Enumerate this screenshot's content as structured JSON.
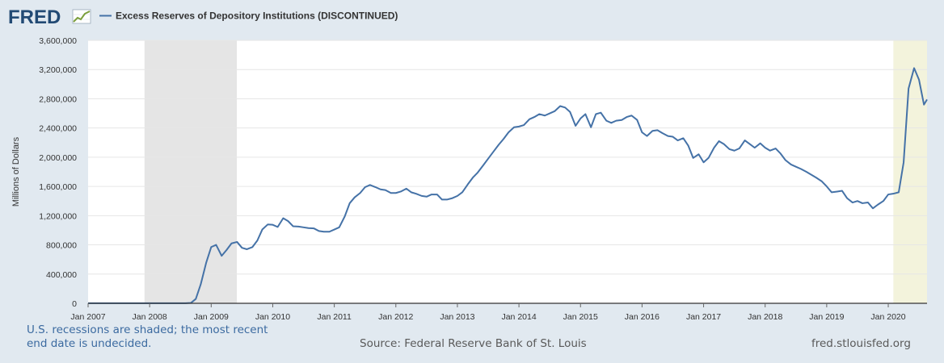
{
  "logo": {
    "text": "FRED"
  },
  "chart_data": {
    "type": "line",
    "title": "Excess Reserves of Depository Institutions (DISCONTINUED)",
    "ylabel": "Millions of Dollars",
    "xlabel": "",
    "ylim": [
      0,
      3600000
    ],
    "xlim": [
      2007.0,
      2020.63
    ],
    "yticks": [
      {
        "value": 0,
        "label": "0"
      },
      {
        "value": 400000,
        "label": "400,000"
      },
      {
        "value": 800000,
        "label": "800,000"
      },
      {
        "value": 1200000,
        "label": "1,200,000"
      },
      {
        "value": 1600000,
        "label": "1,600,000"
      },
      {
        "value": 2000000,
        "label": "2,000,000"
      },
      {
        "value": 2400000,
        "label": "2,400,000"
      },
      {
        "value": 2800000,
        "label": "2,800,000"
      },
      {
        "value": 3200000,
        "label": "3,200,000"
      },
      {
        "value": 3600000,
        "label": "3,600,000"
      }
    ],
    "xticks": [
      {
        "value": 2007,
        "label": "Jan 2007"
      },
      {
        "value": 2008,
        "label": "Jan 2008"
      },
      {
        "value": 2009,
        "label": "Jan 2009"
      },
      {
        "value": 2010,
        "label": "Jan 2010"
      },
      {
        "value": 2011,
        "label": "Jan 2011"
      },
      {
        "value": 2012,
        "label": "Jan 2012"
      },
      {
        "value": 2013,
        "label": "Jan 2013"
      },
      {
        "value": 2014,
        "label": "Jan 2014"
      },
      {
        "value": 2015,
        "label": "Jan 2015"
      },
      {
        "value": 2016,
        "label": "Jan 2016"
      },
      {
        "value": 2017,
        "label": "Jan 2017"
      },
      {
        "value": 2018,
        "label": "Jan 2018"
      },
      {
        "value": 2019,
        "label": "Jan 2019"
      },
      {
        "value": 2020,
        "label": "Jan 2020"
      }
    ],
    "recessions": [
      {
        "start": 2007.917,
        "end": 2009.417,
        "kind": "recession"
      },
      {
        "start": 2020.083,
        "end": 2020.63,
        "kind": "undecided"
      }
    ],
    "series": [
      {
        "name": "Excess Reserves of Depository Institutions (DISCONTINUED)",
        "color": "#4572a7",
        "x": [
          2007.0,
          2007.5,
          2008.0,
          2008.5,
          2008.58,
          2008.67,
          2008.75,
          2008.83,
          2008.92,
          2009.0,
          2009.08,
          2009.17,
          2009.25,
          2009.33,
          2009.42,
          2009.5,
          2009.58,
          2009.67,
          2009.75,
          2009.83,
          2009.92,
          2010.0,
          2010.08,
          2010.17,
          2010.25,
          2010.33,
          2010.42,
          2010.5,
          2010.58,
          2010.67,
          2010.75,
          2010.83,
          2010.92,
          2011.0,
          2011.08,
          2011.17,
          2011.25,
          2011.33,
          2011.42,
          2011.5,
          2011.58,
          2011.67,
          2011.75,
          2011.83,
          2011.92,
          2012.0,
          2012.08,
          2012.17,
          2012.25,
          2012.33,
          2012.42,
          2012.5,
          2012.58,
          2012.67,
          2012.75,
          2012.83,
          2012.92,
          2013.0,
          2013.08,
          2013.17,
          2013.25,
          2013.33,
          2013.42,
          2013.5,
          2013.58,
          2013.67,
          2013.75,
          2013.83,
          2013.92,
          2014.0,
          2014.08,
          2014.17,
          2014.25,
          2014.33,
          2014.42,
          2014.5,
          2014.58,
          2014.67,
          2014.75,
          2014.83,
          2014.92,
          2015.0,
          2015.08,
          2015.17,
          2015.25,
          2015.33,
          2015.42,
          2015.5,
          2015.58,
          2015.67,
          2015.75,
          2015.83,
          2015.92,
          2016.0,
          2016.08,
          2016.17,
          2016.25,
          2016.33,
          2016.42,
          2016.5,
          2016.58,
          2016.67,
          2016.75,
          2016.83,
          2016.92,
          2017.0,
          2017.08,
          2017.17,
          2017.25,
          2017.33,
          2017.42,
          2017.5,
          2017.58,
          2017.67,
          2017.75,
          2017.83,
          2017.92,
          2018.0,
          2018.08,
          2018.17,
          2018.25,
          2018.33,
          2018.42,
          2018.5,
          2018.58,
          2018.67,
          2018.75,
          2018.83,
          2018.92,
          2019.0,
          2019.08,
          2019.17,
          2019.25,
          2019.33,
          2019.42,
          2019.5,
          2019.58,
          2019.67,
          2019.75,
          2019.83,
          2019.92,
          2020.0,
          2020.08,
          2020.17,
          2020.25,
          2020.33,
          2020.42,
          2020.5,
          2020.58,
          2020.63
        ],
        "values": [
          2000,
          2000,
          2000,
          2000,
          2000,
          5000,
          60000,
          260000,
          560000,
          770000,
          800000,
          650000,
          730000,
          820000,
          840000,
          760000,
          740000,
          770000,
          860000,
          1010000,
          1080000,
          1075000,
          1045000,
          1165000,
          1125000,
          1055000,
          1050000,
          1040000,
          1030000,
          1025000,
          990000,
          980000,
          980000,
          1010000,
          1040000,
          1190000,
          1370000,
          1450000,
          1510000,
          1590000,
          1620000,
          1590000,
          1560000,
          1550000,
          1510000,
          1510000,
          1530000,
          1570000,
          1520000,
          1500000,
          1470000,
          1460000,
          1490000,
          1490000,
          1420000,
          1420000,
          1440000,
          1470000,
          1520000,
          1630000,
          1720000,
          1790000,
          1890000,
          1980000,
          2070000,
          2170000,
          2250000,
          2340000,
          2410000,
          2420000,
          2440000,
          2520000,
          2550000,
          2590000,
          2570000,
          2600000,
          2630000,
          2700000,
          2680000,
          2620000,
          2430000,
          2530000,
          2590000,
          2410000,
          2590000,
          2610000,
          2500000,
          2470000,
          2500000,
          2510000,
          2550000,
          2570000,
          2510000,
          2340000,
          2290000,
          2360000,
          2370000,
          2330000,
          2290000,
          2280000,
          2230000,
          2260000,
          2160000,
          1990000,
          2040000,
          1930000,
          1990000,
          2130000,
          2220000,
          2180000,
          2110000,
          2090000,
          2120000,
          2230000,
          2180000,
          2130000,
          2190000,
          2130000,
          2090000,
          2120000,
          2050000,
          1960000,
          1900000,
          1870000,
          1840000,
          1800000,
          1760000,
          1720000,
          1670000,
          1600000,
          1520000,
          1530000,
          1540000,
          1440000,
          1380000,
          1400000,
          1370000,
          1380000,
          1300000,
          1350000,
          1400000,
          1490000,
          1500000,
          1520000,
          1930000,
          2940000,
          3220000,
          3060000,
          2720000,
          2790000
        ]
      }
    ]
  },
  "footer": {
    "note_line1": "U.S. recessions are shaded; the most recent",
    "note_line2": "end date is undecided.",
    "source": "Source: Federal Reserve Bank of St. Louis",
    "site": "fred.stlouisfed.org"
  }
}
